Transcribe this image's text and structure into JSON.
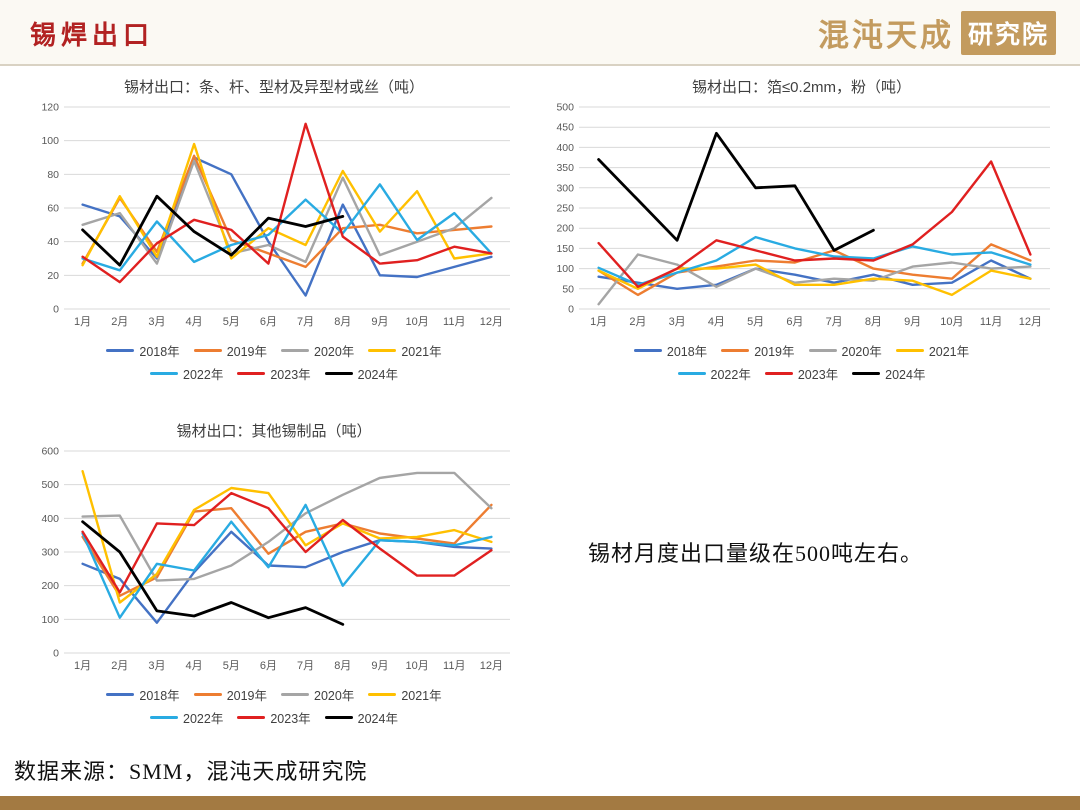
{
  "header": {
    "title": "锡焊出口",
    "logo_script": "混沌天成",
    "logo_seal": "研究院"
  },
  "note": {
    "text": "锡材月度出口量级在500吨左右。"
  },
  "footer": {
    "source": "数据来源：SMM，混沌天成研究院"
  },
  "colors": {
    "title_red": "#B22222",
    "logo_gold": "#C39B5E",
    "bottom_bar": "#A37A42",
    "grid": "#D9D9D9",
    "tick_label": "#595959",
    "chart_title": "#3f3f3f"
  },
  "chart_data": [
    {
      "type": "line",
      "title": "锡材出口：条、杆、型材及异型材或丝（吨）",
      "categories": [
        "1月",
        "2月",
        "3月",
        "4月",
        "5月",
        "6月",
        "7月",
        "8月",
        "9月",
        "10月",
        "11月",
        "12月"
      ],
      "ylim": [
        0,
        120
      ],
      "ytick_step": 20,
      "grid": true,
      "legend_position": "bottom",
      "series": [
        {
          "name": "2018年",
          "color": "#4472C4",
          "values": [
            62,
            55,
            30,
            90,
            80,
            40,
            8,
            62,
            20,
            19,
            25,
            31
          ]
        },
        {
          "name": "2019年",
          "color": "#ED7D31",
          "values": [
            27,
            66,
            34,
            91,
            41,
            33,
            25,
            48,
            50,
            45,
            47,
            49
          ]
        },
        {
          "name": "2020年",
          "color": "#A5A5A5",
          "values": [
            50,
            57,
            27,
            88,
            33,
            38,
            28,
            78,
            32,
            40,
            48,
            66
          ]
        },
        {
          "name": "2021年",
          "color": "#FFC000",
          "values": [
            26,
            67,
            31,
            98,
            30,
            48,
            38,
            82,
            46,
            70,
            30,
            33
          ]
        },
        {
          "name": "2022年",
          "color": "#29ABE2",
          "values": [
            30,
            23,
            52,
            28,
            38,
            44,
            65,
            45,
            74,
            41,
            57,
            33
          ]
        },
        {
          "name": "2023年",
          "color": "#E02020",
          "values": [
            31,
            16,
            39,
            53,
            47,
            27,
            110,
            43,
            27,
            29,
            37,
            33
          ]
        },
        {
          "name": "2024年",
          "color": "#000000",
          "values": [
            47,
            26,
            67,
            46,
            32,
            54,
            49,
            55
          ]
        }
      ]
    },
    {
      "type": "line",
      "title": "锡材出口：箔≤0.2mm，粉（吨）",
      "categories": [
        "1月",
        "2月",
        "3月",
        "4月",
        "5月",
        "6月",
        "7月",
        "8月",
        "9月",
        "10月",
        "11月",
        "12月"
      ],
      "ylim": [
        0,
        500
      ],
      "ytick_step": 50,
      "grid": true,
      "legend_position": "bottom",
      "series": [
        {
          "name": "2018年",
          "color": "#4472C4",
          "values": [
            80,
            65,
            50,
            60,
            100,
            85,
            65,
            85,
            60,
            65,
            120,
            75
          ]
        },
        {
          "name": "2019年",
          "color": "#ED7D31",
          "values": [
            95,
            35,
            90,
            105,
            120,
            115,
            145,
            100,
            85,
            75,
            160,
            120
          ]
        },
        {
          "name": "2020年",
          "color": "#A5A5A5",
          "values": [
            12,
            135,
            110,
            55,
            100,
            65,
            75,
            70,
            105,
            115,
            100,
            105
          ]
        },
        {
          "name": "2021年",
          "color": "#FFC000",
          "values": [
            95,
            50,
            100,
            100,
            110,
            60,
            60,
            75,
            70,
            35,
            95,
            75
          ]
        },
        {
          "name": "2022年",
          "color": "#29ABE2",
          "values": [
            102,
            60,
            90,
            120,
            178,
            150,
            130,
            125,
            155,
            135,
            140,
            110
          ]
        },
        {
          "name": "2023年",
          "color": "#E02020",
          "values": [
            163,
            55,
            100,
            170,
            145,
            120,
            125,
            120,
            160,
            240,
            365,
            135
          ]
        },
        {
          "name": "2024年",
          "color": "#000000",
          "values": [
            370,
            270,
            170,
            435,
            300,
            305,
            145,
            195
          ]
        }
      ]
    },
    {
      "type": "line",
      "title": "锡材出口：其他锡制品（吨）",
      "categories": [
        "1月",
        "2月",
        "3月",
        "4月",
        "5月",
        "6月",
        "7月",
        "8月",
        "9月",
        "10月",
        "11月",
        "12月"
      ],
      "ylim": [
        0,
        600
      ],
      "ytick_step": 100,
      "grid": true,
      "legend_position": "bottom",
      "series": [
        {
          "name": "2018年",
          "color": "#4472C4",
          "values": [
            265,
            220,
            90,
            240,
            360,
            260,
            255,
            300,
            335,
            330,
            315,
            310
          ]
        },
        {
          "name": "2019年",
          "color": "#ED7D31",
          "values": [
            345,
            170,
            225,
            420,
            430,
            295,
            360,
            385,
            355,
            340,
            325,
            440
          ]
        },
        {
          "name": "2020年",
          "color": "#A5A5A5",
          "values": [
            405,
            408,
            215,
            220,
            260,
            330,
            415,
            470,
            520,
            535,
            535,
            430
          ]
        },
        {
          "name": "2021年",
          "color": "#FFC000",
          "values": [
            540,
            150,
            235,
            425,
            490,
            475,
            320,
            385,
            340,
            345,
            365,
            330
          ]
        },
        {
          "name": "2022年",
          "color": "#29ABE2",
          "values": [
            355,
            105,
            265,
            245,
            390,
            255,
            440,
            200,
            335,
            330,
            320,
            345
          ]
        },
        {
          "name": "2023年",
          "color": "#E02020",
          "values": [
            360,
            180,
            385,
            380,
            475,
            430,
            300,
            395,
            310,
            230,
            230,
            305
          ]
        },
        {
          "name": "2024年",
          "color": "#000000",
          "values": [
            390,
            300,
            125,
            110,
            150,
            105,
            135,
            85
          ]
        }
      ]
    }
  ]
}
